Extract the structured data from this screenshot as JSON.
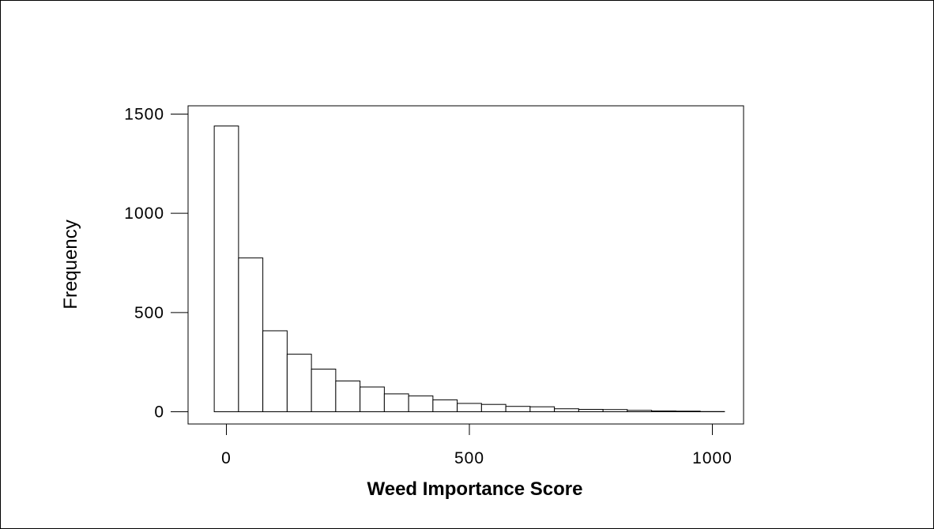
{
  "chart_data": {
    "type": "bar",
    "title": "",
    "xlabel": "Weed Importance Score",
    "ylabel": "Frequency",
    "xlim": [
      -50,
      1050
    ],
    "ylim": [
      0,
      1500
    ],
    "x_ticks": [
      0,
      500,
      1000
    ],
    "x_tick_labels": [
      "0",
      "500",
      "1000"
    ],
    "y_ticks": [
      0,
      500,
      1000,
      1500
    ],
    "y_tick_labels": [
      "0",
      "500",
      "1000",
      "1500"
    ],
    "grid": false,
    "bar_color": "#ffffff",
    "edge_color": "#000000",
    "bins": [
      {
        "x0": -25,
        "x1": 25,
        "count": 1440
      },
      {
        "x0": 25,
        "x1": 75,
        "count": 775
      },
      {
        "x0": 75,
        "x1": 125,
        "count": 408
      },
      {
        "x0": 125,
        "x1": 175,
        "count": 290
      },
      {
        "x0": 175,
        "x1": 225,
        "count": 215
      },
      {
        "x0": 225,
        "x1": 275,
        "count": 155
      },
      {
        "x0": 275,
        "x1": 325,
        "count": 125
      },
      {
        "x0": 325,
        "x1": 375,
        "count": 90
      },
      {
        "x0": 375,
        "x1": 425,
        "count": 80
      },
      {
        "x0": 425,
        "x1": 475,
        "count": 60
      },
      {
        "x0": 475,
        "x1": 525,
        "count": 42
      },
      {
        "x0": 525,
        "x1": 575,
        "count": 37
      },
      {
        "x0": 575,
        "x1": 625,
        "count": 27
      },
      {
        "x0": 625,
        "x1": 675,
        "count": 25
      },
      {
        "x0": 675,
        "x1": 725,
        "count": 15
      },
      {
        "x0": 725,
        "x1": 775,
        "count": 12
      },
      {
        "x0": 775,
        "x1": 825,
        "count": 11
      },
      {
        "x0": 825,
        "x1": 875,
        "count": 7
      },
      {
        "x0": 875,
        "x1": 925,
        "count": 4
      },
      {
        "x0": 925,
        "x1": 975,
        "count": 3
      },
      {
        "x0": 975,
        "x1": 1025,
        "count": 1
      }
    ]
  }
}
